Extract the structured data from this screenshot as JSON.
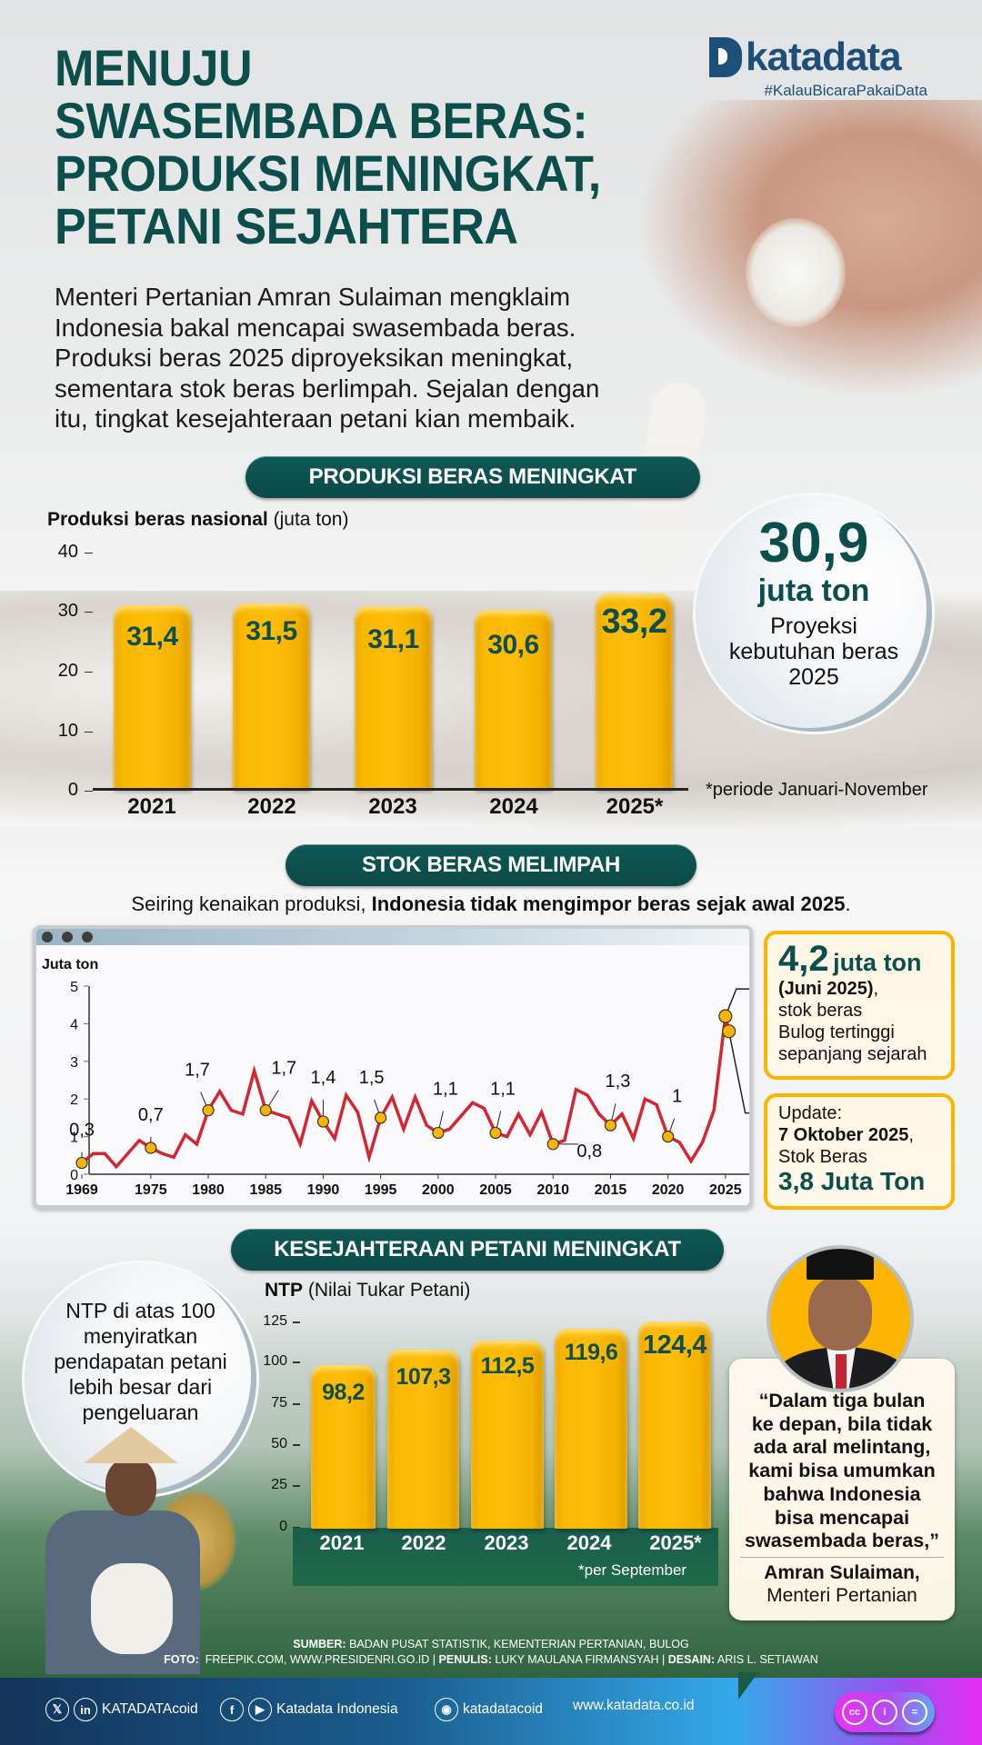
{
  "header": {
    "title_lines": [
      "MENUJU",
      "SWASEMBADA BERAS:",
      "PRODUKSI MENINGKAT,",
      "PETANI SEJAHTERA"
    ],
    "logo_text": "katadata",
    "logo_tagline": "#KalauBicaraPakaiData",
    "intro": "Menteri Pertanian Amran Sulaiman mengklaim Indonesia bakal mencapai swasembada beras. Produksi beras 2025 diproyeksikan meningkat, sementara stok beras berlimpah. Sejalan dengan itu, tingkat kesejahteraan petani kian membaik."
  },
  "section1": {
    "pill": "PRODUKSI BERAS MENINGKAT",
    "label_bold": "Produksi beras nasional",
    "label_unit": "(juta ton)",
    "yticks": [
      "40",
      "30",
      "20",
      "10",
      "0"
    ],
    "years": [
      "2021",
      "2022",
      "2023",
      "2024",
      "2025*"
    ],
    "values": [
      "31,4",
      "31,5",
      "31,1",
      "30,6",
      "33,2"
    ],
    "footnote": "*periode Januari-November",
    "bubble": {
      "big": "30,9",
      "unit": "juta ton",
      "desc": [
        "Proyeksi",
        "kebutuhan beras",
        "2025"
      ]
    }
  },
  "section2": {
    "pill": "STOK BERAS MELIMPAH",
    "subtitle_normal": "Seiring kenaikan produksi,",
    "subtitle_bold": "Indonesia tidak mengimpor beras sejak awal 2025",
    "subtitle_end": ".",
    "chart_ylabel": "Juta ton",
    "yticks": [
      "5",
      "4",
      "3",
      "2",
      "1",
      "0"
    ],
    "xticks": [
      "1969",
      "1975",
      "1980",
      "1985",
      "1990",
      "1995",
      "2000",
      "2005",
      "2010",
      "2015",
      "2020",
      "2025"
    ],
    "point_labels": [
      "0,3",
      "0,7",
      "1,7",
      "1,7",
      "1,4",
      "1,5",
      "1,1",
      "1,1",
      "0,8",
      "1,3",
      "1"
    ],
    "callout1": {
      "big": "4,2",
      "unit": "juta ton",
      "bold": "(Juni 2025)",
      "lines": [
        "stok beras",
        "Bulog tertinggi",
        "sepanjang sejarah"
      ]
    },
    "callout2": {
      "line1": "Update:",
      "bold": "7 Oktober 2025",
      "line3": "Stok Beras",
      "big": "3,8 Juta Ton"
    }
  },
  "section3": {
    "pill": "KESEJAHTERAAN PETANI MENINGKAT",
    "label_bold": "NTP",
    "label_rest": "(Nilai Tukar Petani)",
    "yticks": [
      "125",
      "100",
      "75",
      "50",
      "25",
      "0"
    ],
    "years": [
      "2021",
      "2022",
      "2023",
      "2024",
      "2025*"
    ],
    "values": [
      "98,2",
      "107,3",
      "112,5",
      "119,6",
      "124,4"
    ],
    "footnote": "*per September",
    "bubble_text": [
      "NTP di atas 100",
      "menyiratkan",
      "pendapatan petani",
      "lebih besar dari",
      "pengeluaran"
    ],
    "quote": {
      "text": [
        "“Dalam tiga bulan",
        "ke depan, bila tidak",
        "ada aral melintang,",
        "kami bisa umumkan",
        "bahwa Indonesia",
        "bisa mencapai",
        "swasembada beras,”"
      ],
      "name": "Amran Sulaiman,",
      "role": "Menteri Pertanian"
    }
  },
  "credits": {
    "sumber_label": "SUMBER:",
    "sumber": "BADAN PUSAT STATISTIK, KEMENTERIAN PERTANIAN, BULOG",
    "foto_label": "FOTO:",
    "foto": "FREEPIK.COM, WWW.PRESIDENRI.GO.ID",
    "penulis_label": "PENULIS:",
    "penulis": "LUKY MAULANA FIRMANSYAH",
    "desain_label": "DESAIN:",
    "desain": "ARIS L. SETIAWAN",
    "sep": "|"
  },
  "footer": {
    "x_handle": "KATADATAcoid",
    "fb_yt": "Katadata Indonesia",
    "ig": "katadatacoid",
    "web": "www.katadata.co.id",
    "icons": {
      "x": "𝕏",
      "in": "in",
      "fb": "f",
      "yt": "▶",
      "ig": "◉",
      "cc": "cc",
      "by": "i",
      "nd": "="
    }
  },
  "colors": {
    "accent_teal": "#0b4e4c",
    "bar_yellow": "#fbb400",
    "line_red": "#d42630"
  },
  "chart_data": [
    {
      "type": "bar",
      "title": "Produksi beras nasional (juta ton)",
      "categories": [
        "2021",
        "2022",
        "2023",
        "2024",
        "2025*"
      ],
      "values": [
        31.4,
        31.5,
        31.1,
        30.6,
        33.2
      ],
      "xlabel": "",
      "ylabel": "juta ton",
      "ylim": [
        0,
        40
      ],
      "yticks": [
        0,
        10,
        20,
        30,
        40
      ],
      "annotations": [
        "*periode Januari-November",
        "30,9 juta ton Proyeksi kebutuhan beras 2025"
      ]
    },
    {
      "type": "line",
      "title": "Stok beras (Juta ton)",
      "ylabel": "Juta ton",
      "ylim": [
        0,
        5
      ],
      "yticks": [
        0,
        1,
        2,
        3,
        4,
        5
      ],
      "x": [
        1969,
        1970,
        1971,
        1972,
        1973,
        1974,
        1975,
        1976,
        1977,
        1978,
        1979,
        1980,
        1981,
        1982,
        1983,
        1984,
        1985,
        1986,
        1987,
        1988,
        1989,
        1990,
        1991,
        1992,
        1993,
        1994,
        1995,
        1996,
        1997,
        1998,
        1999,
        2000,
        2001,
        2002,
        2003,
        2004,
        2005,
        2006,
        2007,
        2008,
        2009,
        2010,
        2011,
        2012,
        2013,
        2014,
        2015,
        2016,
        2017,
        2018,
        2019,
        2020,
        2021,
        2022,
        2023,
        2024,
        "2025 (Juni)",
        "2025 (7 Okt)"
      ],
      "values": [
        0.3,
        0.55,
        0.55,
        0.2,
        0.55,
        0.9,
        0.7,
        0.55,
        0.45,
        1.05,
        0.8,
        1.7,
        2.2,
        1.7,
        1.6,
        2.75,
        1.7,
        1.6,
        1.5,
        0.8,
        1.95,
        1.4,
        0.95,
        2.1,
        1.65,
        0.45,
        1.5,
        2.05,
        1.2,
        2.05,
        1.3,
        1.1,
        1.2,
        1.55,
        1.9,
        1.75,
        1.1,
        1.0,
        1.6,
        1.05,
        1.65,
        0.8,
        0.9,
        2.25,
        2.1,
        1.6,
        1.3,
        1.6,
        0.95,
        2.0,
        1.85,
        1.0,
        0.85,
        0.35,
        0.85,
        1.7,
        4.2,
        3.8
      ],
      "labeled_points": {
        "1969": 0.3,
        "1975": 0.7,
        "1980": 1.7,
        "1985": 1.7,
        "1990": 1.4,
        "1995": 1.5,
        "2000": 1.1,
        "2005": 1.1,
        "2010": 0.8,
        "2015": 1.3,
        "2020": 1.0,
        "2025 (Juni)": 4.2,
        "2025 (7 Okt)": 3.8
      },
      "xticks": [
        1969,
        1975,
        1980,
        1985,
        1990,
        1995,
        2000,
        2005,
        2010,
        2015,
        2020,
        2025
      ]
    },
    {
      "type": "bar",
      "title": "NTP (Nilai Tukar Petani)",
      "categories": [
        "2021",
        "2022",
        "2023",
        "2024",
        "2025*"
      ],
      "values": [
        98.2,
        107.3,
        112.5,
        119.6,
        124.4
      ],
      "ylim": [
        0,
        125
      ],
      "yticks": [
        0,
        25,
        50,
        75,
        100,
        125
      ],
      "annotations": [
        "*per September"
      ]
    }
  ]
}
